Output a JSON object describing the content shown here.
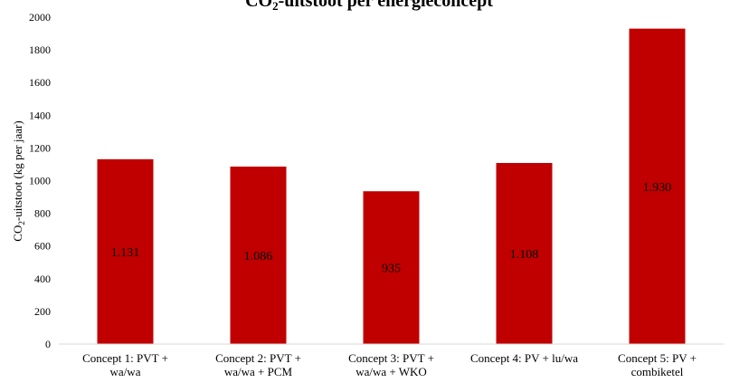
{
  "chart_data": {
    "type": "bar",
    "title": "CO",
    "title_sub": "2",
    "title_rest": "-uitstoot per energieconcept",
    "ylabel_main": "CO",
    "ylabel_sub": "2",
    "ylabel_rest": "-uitstoot (kg per jaar)",
    "xlabel": "",
    "categories": [
      [
        "Concept 1: PVT +",
        "wa/wa"
      ],
      [
        "Concept 2: PVT +",
        "wa/wa + PCM"
      ],
      [
        "Concept 3: PVT +",
        "wa/wa + WKO"
      ],
      [
        "Concept 4: PV + lu/wa"
      ],
      [
        "Concept 5: PV +",
        "combiketel"
      ]
    ],
    "values": [
      1131,
      1086,
      935,
      1108,
      1930
    ],
    "data_labels": [
      "1.131",
      "1.086",
      "935",
      "1.108",
      "1.930"
    ],
    "ylim": [
      0,
      2000
    ],
    "yticks": [
      "0",
      "200",
      "400",
      "600",
      "800",
      "1000",
      "1200",
      "1400",
      "1600",
      "1800",
      "2000"
    ],
    "bar_color": "#c00000",
    "grid": false,
    "legend": "none"
  }
}
